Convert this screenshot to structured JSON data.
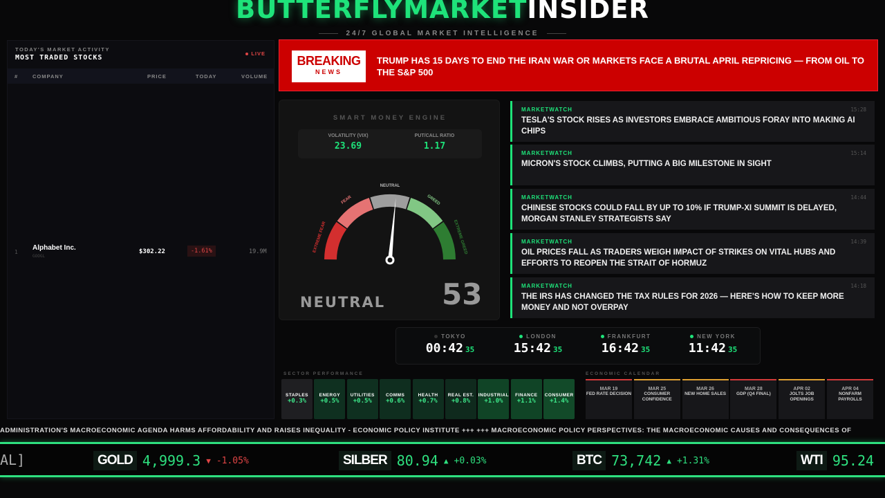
{
  "header": {
    "brand_green": "BUTTERFLYMARKET",
    "brand_white": "INSIDER",
    "tagline": "24/7 GLOBAL MARKET INTELLIGENCE"
  },
  "stocks": {
    "subtitle": "TODAY'S MARKET ACTIVITY",
    "title": "MOST TRADED STOCKS",
    "live": "LIVE",
    "columns": [
      "#",
      "COMPANY",
      "PRICE",
      "TODAY",
      "VOLUME"
    ],
    "rows": [
      {
        "rank": "1",
        "company": "Alphabet Inc.",
        "ticker": "GOOGL",
        "price": "$302.22",
        "today": "-1.61%",
        "volume": "19.9M"
      }
    ]
  },
  "breaking": {
    "label1": "BREAKING",
    "label2": "NEWS",
    "headline": "TRUMP HAS 15 DAYS TO END THE IRAN WAR OR MARKETS FACE A BRUTAL APRIL REPRICING — FROM OIL TO THE S&P 500"
  },
  "engine": {
    "title": "SMART MONEY ENGINE",
    "vix_label": "VOLATILITY (VIX)",
    "vix": "23.69",
    "pcr_label": "PUT/CALL RATIO",
    "pcr": "1.17",
    "zones": [
      "EXTREME FEAR",
      "FEAR",
      "NEUTRAL",
      "GREED",
      "EXTREME GREED"
    ],
    "zone_colors": [
      "#d32f2f",
      "#e57373",
      "#9e9e9e",
      "#81c784",
      "#2e7d32"
    ],
    "value": 53,
    "value_text": "53",
    "sentiment": "NEUTRAL"
  },
  "news": [
    {
      "source": "MARKETWATCH",
      "time": "15:28",
      "headline": "TESLA'S STOCK RISES AS INVESTORS EMBRACE AMBITIOUS FORAY INTO MAKING AI CHIPS"
    },
    {
      "source": "MARKETWATCH",
      "time": "15:14",
      "headline": "MICRON'S STOCK CLIMBS, PUTTING A BIG MILESTONE IN SIGHT"
    },
    {
      "source": "MARKETWATCH",
      "time": "14:44",
      "headline": "CHINESE STOCKS COULD FALL BY UP TO 10% IF TRUMP-XI SUMMIT IS DELAYED, MORGAN STANLEY STRATEGISTS SAY"
    },
    {
      "source": "MARKETWATCH",
      "time": "14:39",
      "headline": "OIL PRICES FALL AS TRADERS WEIGH IMPACT OF STRIKES ON VITAL HUBS AND EFFORTS TO REOPEN THE STRAIT OF HORMUZ"
    },
    {
      "source": "MARKETWATCH",
      "time": "14:18",
      "headline": "THE IRS HAS CHANGED THE TAX RULES FOR 2026 — HERE'S HOW TO KEEP MORE MONEY AND NOT OVERPAY"
    }
  ],
  "clocks": [
    {
      "city": "TOKYO",
      "hm": "00:42",
      "sec": "35",
      "open": false
    },
    {
      "city": "LONDON",
      "hm": "15:42",
      "sec": "35",
      "open": true
    },
    {
      "city": "FRANKFURT",
      "hm": "16:42",
      "sec": "35",
      "open": true
    },
    {
      "city": "NEW YORK",
      "hm": "11:42",
      "sec": "35",
      "open": true
    }
  ],
  "sectors": {
    "label": "SECTOR PERFORMANCE",
    "items": [
      {
        "name": "STAPLES",
        "change": "+0.3%"
      },
      {
        "name": "ENERGY",
        "change": "+0.5%"
      },
      {
        "name": "UTILITIES",
        "change": "+0.5%"
      },
      {
        "name": "COMMS",
        "change": "+0.6%"
      },
      {
        "name": "HEALTH",
        "change": "+0.7%"
      },
      {
        "name": "REAL EST.",
        "change": "+0.8%"
      },
      {
        "name": "INDUSTRIAL",
        "change": "+1.0%"
      },
      {
        "name": "FINANCE",
        "change": "+1.1%"
      },
      {
        "name": "CONSUMER",
        "change": "+1.4%"
      }
    ]
  },
  "calendar": {
    "label": "ECONOMIC CALENDAR",
    "items": [
      {
        "date": "MAR 19",
        "event": "FED RATE DECISION",
        "impact": "#d23a3a"
      },
      {
        "date": "MAR 25",
        "event": "CONSUMER CONFIDENCE",
        "impact": "#e0a030"
      },
      {
        "date": "MAR 26",
        "event": "NEW HOME SALES",
        "impact": "#e0a030"
      },
      {
        "date": "MAR 28",
        "event": "GDP (Q4 FINAL)",
        "impact": "#d23a3a"
      },
      {
        "date": "APR 02",
        "event": "JOLTS JOB OPENINGS",
        "impact": "#e0a030"
      },
      {
        "date": "APR 04",
        "event": "NONFARM PAYROLLS",
        "impact": "#d23a3a"
      }
    ]
  },
  "news_ticker": "ADMINISTRATION'S MACROECONOMIC AGENDA HARMS AFFORDABILITY AND RAISES INEQUALITY - ECONOMIC POLICY INSTITUTE +++ +++ MACROECONOMIC POLICY PERSPECTIVES: THE MACROECONOMIC CAUSES AND CONSEQUENCES OF",
  "price_ticker": {
    "lead": "AL]",
    "items": [
      {
        "symbol": "GOLD",
        "price": "4,999.3",
        "arrow": "▼",
        "change": "-1.05%",
        "dir": "down"
      },
      {
        "symbol": "SILBER",
        "price": "80.94",
        "arrow": "▲",
        "change": "+0.03%",
        "dir": "up"
      },
      {
        "symbol": "BTC",
        "price": "73,742",
        "arrow": "▲",
        "change": "+1.31%",
        "dir": "up"
      },
      {
        "symbol": "WTI",
        "price": "95.24",
        "arrow": "",
        "change": "",
        "dir": "up"
      }
    ]
  }
}
